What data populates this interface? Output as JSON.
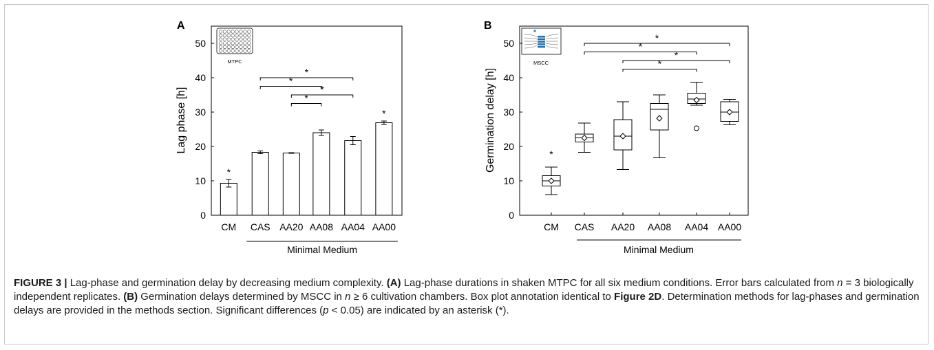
{
  "figure": {
    "panel_a_label": "A",
    "panel_b_label": "B",
    "inset_a_label": "MTPC",
    "inset_b_label": "MSCC",
    "group_label": "Minimal Medium",
    "significance_marker": "*"
  },
  "chart_data": [
    {
      "type": "bar",
      "panel": "A",
      "ylabel": "Lag phase [h]",
      "ylim": [
        0,
        55
      ],
      "yticks": [
        0,
        10,
        20,
        30,
        40,
        50
      ],
      "categories": [
        "CM",
        "CAS",
        "AA20",
        "AA08",
        "AA04",
        "AA00"
      ],
      "values": [
        9.3,
        18.3,
        18.1,
        24.0,
        21.7,
        26.9
      ],
      "errors": [
        1.1,
        0.4,
        0.1,
        0.8,
        1.2,
        0.5
      ],
      "asterisks_on_bars": [
        "CM",
        "AA00"
      ],
      "brackets": [
        {
          "from": "CAS",
          "to": "AA04",
          "y": 40.0
        },
        {
          "from": "CAS",
          "to": "AA08",
          "y": 37.5
        },
        {
          "from": "AA20",
          "to": "AA04",
          "y": 35.0
        },
        {
          "from": "AA20",
          "to": "AA08",
          "y": 32.5
        }
      ]
    },
    {
      "type": "box",
      "panel": "B",
      "ylabel": "Germination delay [h]",
      "ylim": [
        0,
        55
      ],
      "yticks": [
        0,
        10,
        20,
        30,
        40,
        50
      ],
      "categories": [
        "CM",
        "CAS",
        "AA20",
        "AA08",
        "AA04",
        "AA00"
      ],
      "boxes": [
        {
          "min": 6.0,
          "q1": 8.5,
          "median": 10.0,
          "q3": 11.5,
          "max": 14.0,
          "mean": 10.0,
          "outliers": []
        },
        {
          "min": 18.3,
          "q1": 21.3,
          "median": 22.5,
          "q3": 23.6,
          "max": 26.8,
          "mean": 22.5,
          "outliers": []
        },
        {
          "min": 13.3,
          "q1": 19.0,
          "median": 23.0,
          "q3": 27.8,
          "max": 33.0,
          "mean": 23.0,
          "outliers": []
        },
        {
          "min": 16.7,
          "q1": 24.8,
          "median": 30.8,
          "q3": 32.5,
          "max": 35.0,
          "mean": 28.2,
          "outliers": []
        },
        {
          "min": 32.0,
          "q1": 32.5,
          "median": 33.8,
          "q3": 35.5,
          "max": 38.7,
          "mean": 33.5,
          "outliers": [
            25.3
          ]
        },
        {
          "min": 26.3,
          "q1": 27.3,
          "median": 30.0,
          "q3": 33.0,
          "max": 33.7,
          "mean": 30.0,
          "outliers": []
        }
      ],
      "asterisks_on_boxes": [
        "CM"
      ],
      "brackets": [
        {
          "from": "CAS",
          "to": "AA00",
          "y": 50.0
        },
        {
          "from": "CAS",
          "to": "AA04",
          "y": 47.5
        },
        {
          "from": "AA20",
          "to": "AA00",
          "y": 45.0
        },
        {
          "from": "AA20",
          "to": "AA04",
          "y": 42.5
        }
      ]
    }
  ],
  "caption": {
    "label": "FIGURE 3 |",
    "text_1": " Lag-phase and germination delay by decreasing medium complexity. ",
    "a_label": "(A)",
    "text_2": " Lag-phase durations in shaken MTPC for all six medium conditions. Error bars calculated from ",
    "n_var_1": "n",
    "text_3": " = 3 biologically independent replicates. ",
    "b_label": "(B)",
    "text_4": " Germination delays determined by MSCC in ",
    "n_var_2": "n",
    "text_5": " ≥ 6 cultivation chambers. Box plot annotation identical to ",
    "fig_ref": "Figure 2D",
    "text_6": ". Determination methods for lag-phases and germination delays are provided in the methods section. Significant differences (",
    "p_var": "p",
    "text_7": " < 0.05) are indicated by an asterisk (*)."
  }
}
